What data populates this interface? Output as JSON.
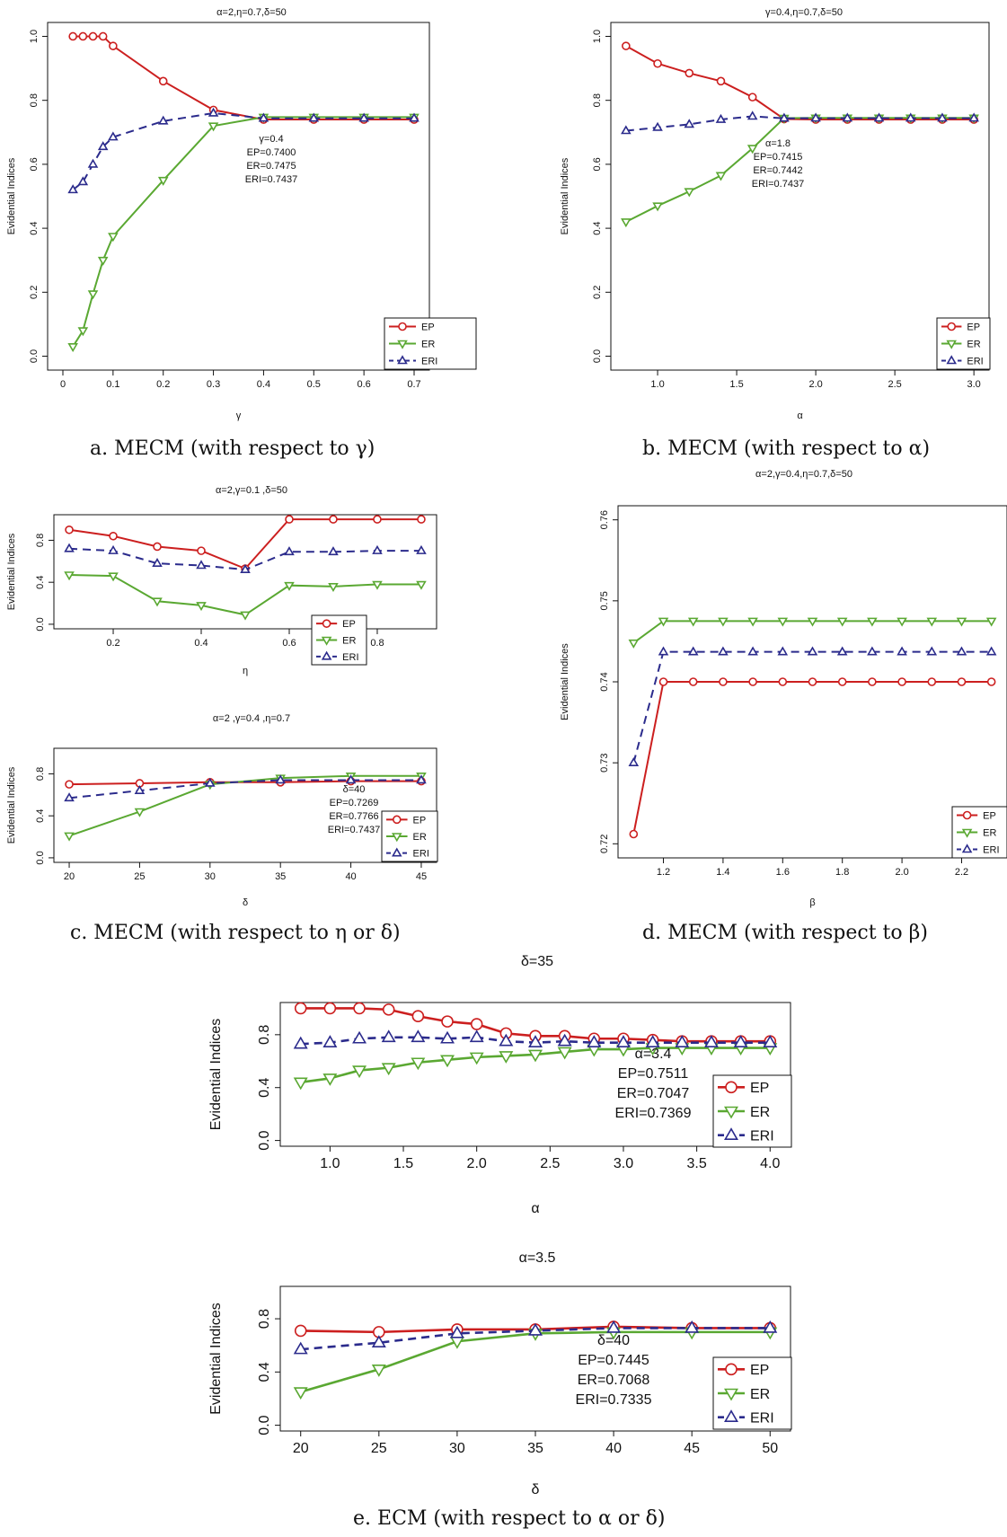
{
  "captions": {
    "a": "a. MECM (with respect to γ)",
    "b": "b. MECM (with respect to α)",
    "c": "c. MECM (with respect to η or δ)",
    "d": "d. MECM (with respect to β)",
    "e": "e. ECM (with respect to α or δ)"
  },
  "colors": {
    "EP": "#cc1f1f",
    "ER": "#5aa832",
    "ERI": "#2b2b8c"
  },
  "chart_data": [
    {
      "id": "a",
      "type": "line",
      "title": "α=2,η=0.7,δ=50",
      "xlabel": "γ",
      "ylabel": "Evidential Indices",
      "xlim": [
        0,
        0.7
      ],
      "ylim": [
        0,
        1
      ],
      "xticks": [
        0,
        0.1,
        0.2,
        0.3,
        0.4,
        0.5,
        0.6,
        0.7
      ],
      "yticks": [
        0,
        0.2,
        0.4,
        0.6,
        0.8,
        1.0
      ],
      "yticklabels": [
        "0.0",
        "0.2",
        "0.4",
        "0.6",
        "0.8",
        "1.0"
      ],
      "legend": "bottom-right",
      "annotation": [
        "γ=0.4",
        "EP=0.7400",
        "ER=0.7475",
        "ERI=0.7437"
      ],
      "series": [
        {
          "name": "EP",
          "x": [
            0.02,
            0.04,
            0.06,
            0.08,
            0.1,
            0.2,
            0.3,
            0.4,
            0.5,
            0.6,
            0.7
          ],
          "values": [
            1.0,
            1.0,
            1.0,
            1.0,
            0.97,
            0.86,
            0.77,
            0.74,
            0.74,
            0.74,
            0.74
          ]
        },
        {
          "name": "ER",
          "x": [
            0.02,
            0.04,
            0.06,
            0.08,
            0.1,
            0.2,
            0.3,
            0.4,
            0.5,
            0.6,
            0.7
          ],
          "values": [
            0.03,
            0.08,
            0.195,
            0.3,
            0.375,
            0.55,
            0.72,
            0.7475,
            0.7475,
            0.7475,
            0.7475
          ]
        },
        {
          "name": "ERI",
          "x": [
            0.02,
            0.04,
            0.06,
            0.08,
            0.1,
            0.2,
            0.3,
            0.4,
            0.5,
            0.6,
            0.7
          ],
          "values": [
            0.52,
            0.545,
            0.6,
            0.655,
            0.685,
            0.735,
            0.76,
            0.7437,
            0.7437,
            0.7437,
            0.7437
          ]
        }
      ]
    },
    {
      "id": "b",
      "type": "line",
      "title": "γ=0.4,η=0.7,δ=50",
      "xlabel": "α",
      "ylabel": "Evidential Indices",
      "xlim": [
        0.8,
        3.0
      ],
      "ylim": [
        0,
        1
      ],
      "xticks": [
        1.0,
        1.5,
        2.0,
        2.5,
        3.0
      ],
      "xticklabels": [
        "1.0",
        "1.5",
        "2.0",
        "2.5",
        "3.0"
      ],
      "yticks": [
        0,
        0.2,
        0.4,
        0.6,
        0.8,
        1.0
      ],
      "yticklabels": [
        "0.0",
        "0.2",
        "0.4",
        "0.6",
        "0.8",
        "1.0"
      ],
      "legend": "bottom-right",
      "annotation": [
        "α=1.8",
        "EP=0.7415",
        "ER=0.7442",
        "ERI=0.7437"
      ],
      "series": [
        {
          "name": "EP",
          "x": [
            0.8,
            1.0,
            1.2,
            1.4,
            1.6,
            1.8,
            2.0,
            2.2,
            2.4,
            2.6,
            2.8,
            3.0
          ],
          "values": [
            0.97,
            0.915,
            0.885,
            0.86,
            0.81,
            0.7415,
            0.74,
            0.74,
            0.74,
            0.74,
            0.74,
            0.74
          ]
        },
        {
          "name": "ER",
          "x": [
            0.8,
            1.0,
            1.2,
            1.4,
            1.6,
            1.8,
            2.0,
            2.2,
            2.4,
            2.6,
            2.8,
            3.0
          ],
          "values": [
            0.42,
            0.47,
            0.515,
            0.565,
            0.65,
            0.7442,
            0.745,
            0.745,
            0.745,
            0.745,
            0.745,
            0.745
          ]
        },
        {
          "name": "ERI",
          "x": [
            0.8,
            1.0,
            1.2,
            1.4,
            1.6,
            1.8,
            2.0,
            2.2,
            2.4,
            2.6,
            2.8,
            3.0
          ],
          "values": [
            0.705,
            0.715,
            0.725,
            0.74,
            0.75,
            0.7437,
            0.744,
            0.744,
            0.744,
            0.744,
            0.744,
            0.744
          ]
        }
      ]
    },
    {
      "id": "c1",
      "type": "line",
      "title": "α=2,γ=0.1 ,δ=50",
      "xlabel": "η",
      "ylabel": "Evidential Indices",
      "xlim": [
        0.1,
        0.9
      ],
      "ylim": [
        0,
        1
      ],
      "xticks": [
        0.2,
        0.4,
        0.6,
        0.8
      ],
      "yticks": [
        0,
        0.4,
        0.8
      ],
      "yticklabels": [
        "0.0",
        "0.4",
        "0.8"
      ],
      "legend": "bottom-center",
      "series": [
        {
          "name": "EP",
          "x": [
            0.1,
            0.2,
            0.3,
            0.4,
            0.5,
            0.6,
            0.7,
            0.8,
            0.9
          ],
          "values": [
            0.9,
            0.84,
            0.74,
            0.7,
            0.53,
            1.0,
            1.0,
            1.0,
            1.0
          ]
        },
        {
          "name": "ER",
          "x": [
            0.1,
            0.2,
            0.3,
            0.4,
            0.5,
            0.6,
            0.7,
            0.8,
            0.9
          ],
          "values": [
            0.47,
            0.46,
            0.22,
            0.18,
            0.09,
            0.37,
            0.36,
            0.38,
            0.38
          ]
        },
        {
          "name": "ERI",
          "x": [
            0.1,
            0.2,
            0.3,
            0.4,
            0.5,
            0.6,
            0.7,
            0.8,
            0.9
          ],
          "values": [
            0.72,
            0.7,
            0.58,
            0.56,
            0.52,
            0.69,
            0.69,
            0.7,
            0.7
          ]
        }
      ]
    },
    {
      "id": "c2",
      "type": "line",
      "title": "α=2 ,γ=0.4 ,η=0.7",
      "xlabel": "δ",
      "ylabel": "Evidential Indices",
      "xlim": [
        20,
        45
      ],
      "ylim": [
        0,
        1
      ],
      "xticks": [
        20,
        25,
        30,
        35,
        40,
        45
      ],
      "yticks": [
        0,
        0.4,
        0.8
      ],
      "yticklabels": [
        "0.0",
        "0.4",
        "0.8"
      ],
      "legend": "bottom-right",
      "annotation": [
        "δ=40",
        "EP=0.7269",
        "ER=0.7766",
        "ERI=0.7437"
      ],
      "series": [
        {
          "name": "EP",
          "x": [
            20,
            25,
            30,
            35,
            40,
            45
          ],
          "values": [
            0.7,
            0.71,
            0.72,
            0.72,
            0.73,
            0.73
          ]
        },
        {
          "name": "ER",
          "x": [
            20,
            25,
            30,
            35,
            40,
            45
          ],
          "values": [
            0.21,
            0.44,
            0.7,
            0.76,
            0.78,
            0.78
          ]
        },
        {
          "name": "ERI",
          "x": [
            20,
            25,
            30,
            35,
            40,
            45
          ],
          "values": [
            0.57,
            0.64,
            0.71,
            0.74,
            0.74,
            0.74
          ]
        }
      ]
    },
    {
      "id": "d",
      "type": "line",
      "title": "α=2,γ=0.4,η=0.7,δ=50",
      "xlabel": "β",
      "ylabel": "Evidential Indices",
      "xlim": [
        1.1,
        2.3
      ],
      "ylim": [
        0.72,
        0.76
      ],
      "xticks": [
        1.2,
        1.4,
        1.6,
        1.8,
        2.0,
        2.2
      ],
      "xticklabels": [
        "1.2",
        "1.4",
        "1.6",
        "1.8",
        "2.0",
        "2.2"
      ],
      "yticks": [
        0.72,
        0.73,
        0.74,
        0.75,
        0.76
      ],
      "yticklabels": [
        "0.72",
        "0.73",
        "0.74",
        "0.75",
        "0.76"
      ],
      "legend": "bottom-right",
      "series": [
        {
          "name": "EP",
          "x": [
            1.1,
            1.2,
            1.3,
            1.4,
            1.5,
            1.6,
            1.7,
            1.8,
            1.9,
            2.0,
            2.1,
            2.2,
            2.3
          ],
          "values": [
            0.7212,
            0.74,
            0.74,
            0.74,
            0.74,
            0.74,
            0.74,
            0.74,
            0.74,
            0.74,
            0.74,
            0.74,
            0.74
          ]
        },
        {
          "name": "ER",
          "x": [
            1.1,
            1.2,
            1.3,
            1.4,
            1.5,
            1.6,
            1.7,
            1.8,
            1.9,
            2.0,
            2.1,
            2.2,
            2.3
          ],
          "values": [
            0.7448,
            0.7475,
            0.7475,
            0.7475,
            0.7475,
            0.7475,
            0.7475,
            0.7475,
            0.7475,
            0.7475,
            0.7475,
            0.7475,
            0.7475
          ]
        },
        {
          "name": "ERI",
          "x": [
            1.1,
            1.2,
            1.3,
            1.4,
            1.5,
            1.6,
            1.7,
            1.8,
            1.9,
            2.0,
            2.1,
            2.2,
            2.3
          ],
          "values": [
            0.73,
            0.7437,
            0.7437,
            0.7437,
            0.7437,
            0.7437,
            0.7437,
            0.7437,
            0.7437,
            0.7437,
            0.7437,
            0.7437,
            0.7437
          ]
        }
      ]
    },
    {
      "id": "e1",
      "type": "line",
      "title": "δ=35",
      "xlabel": "α",
      "ylabel": "Evidential Indices",
      "xlim": [
        0.8,
        4.0
      ],
      "ylim": [
        0,
        1
      ],
      "xticks": [
        1.0,
        1.5,
        2.0,
        2.5,
        3.0,
        3.5,
        4.0
      ],
      "xticklabels": [
        "1.0",
        "1.5",
        "2.0",
        "2.5",
        "3.0",
        "3.5",
        "4.0"
      ],
      "yticks": [
        0,
        0.4,
        0.8
      ],
      "yticklabels": [
        "0.0",
        "0.4",
        "0.8"
      ],
      "legend": "bottom-right",
      "annotation": [
        "α=3.4",
        "EP=0.7511",
        "ER=0.7047",
        "ERI=0.7369"
      ],
      "series": [
        {
          "name": "EP",
          "x": [
            0.8,
            1.0,
            1.2,
            1.4,
            1.6,
            1.8,
            2.0,
            2.2,
            2.4,
            2.6,
            2.8,
            3.0,
            3.2,
            3.4,
            3.6,
            3.8,
            4.0
          ],
          "values": [
            1.0,
            1.0,
            1.0,
            0.99,
            0.94,
            0.9,
            0.88,
            0.81,
            0.79,
            0.79,
            0.77,
            0.77,
            0.76,
            0.75,
            0.75,
            0.75,
            0.75
          ]
        },
        {
          "name": "ER",
          "x": [
            0.8,
            1.0,
            1.2,
            1.4,
            1.6,
            1.8,
            2.0,
            2.2,
            2.4,
            2.6,
            2.8,
            3.0,
            3.2,
            3.4,
            3.6,
            3.8,
            4.0
          ],
          "values": [
            0.44,
            0.47,
            0.53,
            0.55,
            0.59,
            0.61,
            0.63,
            0.64,
            0.65,
            0.67,
            0.69,
            0.69,
            0.7,
            0.7,
            0.7,
            0.7,
            0.7
          ]
        },
        {
          "name": "ERI",
          "x": [
            0.8,
            1.0,
            1.2,
            1.4,
            1.6,
            1.8,
            2.0,
            2.2,
            2.4,
            2.6,
            2.8,
            3.0,
            3.2,
            3.4,
            3.6,
            3.8,
            4.0
          ],
          "values": [
            0.73,
            0.74,
            0.77,
            0.78,
            0.78,
            0.77,
            0.78,
            0.75,
            0.74,
            0.75,
            0.74,
            0.74,
            0.74,
            0.74,
            0.74,
            0.74,
            0.74
          ]
        }
      ]
    },
    {
      "id": "e2",
      "type": "line",
      "title": "α=3.5",
      "xlabel": "δ",
      "ylabel": "Evidential Indices",
      "xlim": [
        20,
        50
      ],
      "ylim": [
        0,
        1
      ],
      "xticks": [
        20,
        25,
        30,
        35,
        40,
        45,
        50
      ],
      "yticks": [
        0,
        0.4,
        0.8
      ],
      "yticklabels": [
        "0.0",
        "0.4",
        "0.8"
      ],
      "legend": "bottom-right",
      "annotation": [
        "δ=40",
        "EP=0.7445",
        "ER=0.7068",
        "ERI=0.7335"
      ],
      "series": [
        {
          "name": "EP",
          "x": [
            20,
            25,
            30,
            35,
            40,
            45,
            50
          ],
          "values": [
            0.71,
            0.7,
            0.72,
            0.72,
            0.74,
            0.73,
            0.73
          ]
        },
        {
          "name": "ER",
          "x": [
            20,
            25,
            30,
            35,
            40,
            45,
            50
          ],
          "values": [
            0.25,
            0.42,
            0.63,
            0.69,
            0.7,
            0.7,
            0.7
          ]
        },
        {
          "name": "ERI",
          "x": [
            20,
            25,
            30,
            35,
            40,
            45,
            50
          ],
          "values": [
            0.57,
            0.62,
            0.69,
            0.71,
            0.73,
            0.73,
            0.73
          ]
        }
      ]
    }
  ]
}
